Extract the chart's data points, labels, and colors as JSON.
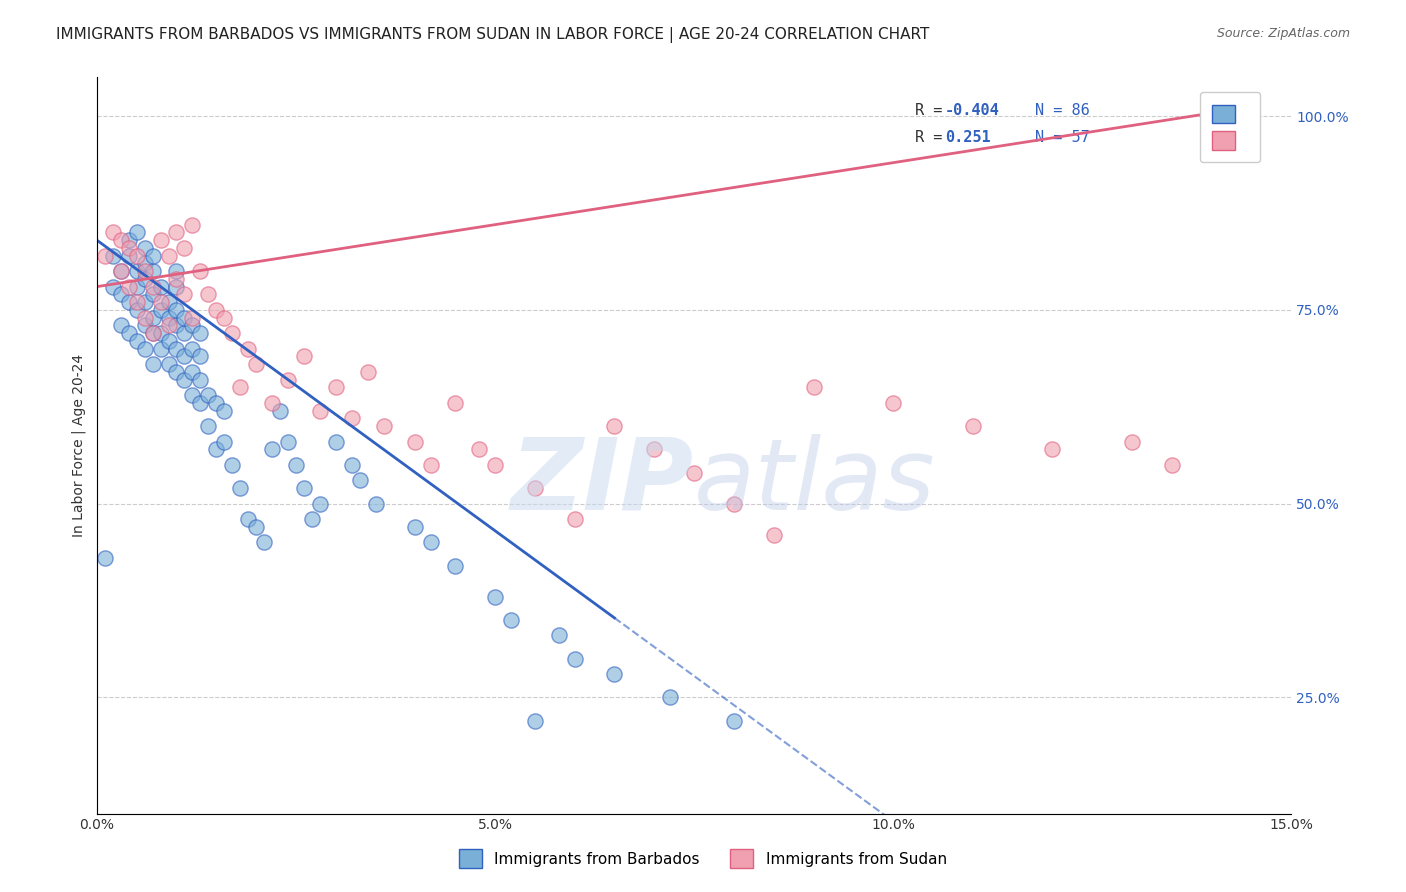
{
  "title": "IMMIGRANTS FROM BARBADOS VS IMMIGRANTS FROM SUDAN IN LABOR FORCE | AGE 20-24 CORRELATION CHART",
  "source": "Source: ZipAtlas.com",
  "xlabel": "",
  "ylabel": "In Labor Force | Age 20-24",
  "xlim": [
    0.0,
    0.15
  ],
  "ylim": [
    0.1,
    1.05
  ],
  "xticks": [
    0.0,
    0.05,
    0.1,
    0.15
  ],
  "xticklabels": [
    "0.0%",
    "5.0%",
    "10.0%",
    "15.0%"
  ],
  "yticks_right": [
    0.25,
    0.5,
    0.75,
    1.0
  ],
  "yticklabels_right": [
    "25.0%",
    "50.0%",
    "75.0%",
    "100.0%"
  ],
  "grid_color": "#cccccc",
  "watermark": "ZIPatlas",
  "watermark_color_zip": "#c8d8f0",
  "watermark_color_atlas": "#b8c8e8",
  "legend_r_blue": "-0.404",
  "legend_n_blue": "86",
  "legend_r_pink": "0.251",
  "legend_n_pink": "57",
  "blue_color": "#7ab0d8",
  "pink_color": "#f0a0b0",
  "blue_line_color": "#3060c0",
  "pink_line_color": "#e06080",
  "title_fontsize": 11,
  "axis_label_fontsize": 10,
  "tick_fontsize": 10,
  "blue_scatter_x": [
    0.001,
    0.002,
    0.002,
    0.003,
    0.003,
    0.003,
    0.004,
    0.004,
    0.004,
    0.004,
    0.005,
    0.005,
    0.005,
    0.005,
    0.005,
    0.006,
    0.006,
    0.006,
    0.006,
    0.006,
    0.006,
    0.007,
    0.007,
    0.007,
    0.007,
    0.007,
    0.007,
    0.008,
    0.008,
    0.008,
    0.008,
    0.009,
    0.009,
    0.009,
    0.009,
    0.01,
    0.01,
    0.01,
    0.01,
    0.01,
    0.01,
    0.011,
    0.011,
    0.011,
    0.011,
    0.012,
    0.012,
    0.012,
    0.012,
    0.013,
    0.013,
    0.013,
    0.013,
    0.014,
    0.014,
    0.015,
    0.015,
    0.016,
    0.016,
    0.017,
    0.018,
    0.019,
    0.02,
    0.021,
    0.022,
    0.023,
    0.024,
    0.025,
    0.026,
    0.027,
    0.028,
    0.03,
    0.032,
    0.033,
    0.035,
    0.04,
    0.042,
    0.045,
    0.05,
    0.052,
    0.055,
    0.058,
    0.06,
    0.065,
    0.072,
    0.08
  ],
  "blue_scatter_y": [
    0.43,
    0.78,
    0.82,
    0.73,
    0.77,
    0.8,
    0.72,
    0.76,
    0.82,
    0.84,
    0.71,
    0.75,
    0.78,
    0.8,
    0.85,
    0.7,
    0.73,
    0.76,
    0.79,
    0.81,
    0.83,
    0.68,
    0.72,
    0.74,
    0.77,
    0.8,
    0.82,
    0.7,
    0.72,
    0.75,
    0.78,
    0.68,
    0.71,
    0.74,
    0.76,
    0.67,
    0.7,
    0.73,
    0.75,
    0.78,
    0.8,
    0.66,
    0.69,
    0.72,
    0.74,
    0.64,
    0.67,
    0.7,
    0.73,
    0.63,
    0.66,
    0.69,
    0.72,
    0.6,
    0.64,
    0.57,
    0.63,
    0.58,
    0.62,
    0.55,
    0.52,
    0.48,
    0.47,
    0.45,
    0.57,
    0.62,
    0.58,
    0.55,
    0.52,
    0.48,
    0.5,
    0.58,
    0.55,
    0.53,
    0.5,
    0.47,
    0.45,
    0.42,
    0.38,
    0.35,
    0.22,
    0.33,
    0.3,
    0.28,
    0.25,
    0.22
  ],
  "pink_scatter_x": [
    0.001,
    0.002,
    0.003,
    0.003,
    0.004,
    0.004,
    0.005,
    0.005,
    0.006,
    0.006,
    0.007,
    0.007,
    0.008,
    0.008,
    0.009,
    0.009,
    0.01,
    0.01,
    0.011,
    0.011,
    0.012,
    0.012,
    0.013,
    0.014,
    0.015,
    0.016,
    0.017,
    0.018,
    0.019,
    0.02,
    0.022,
    0.024,
    0.026,
    0.028,
    0.03,
    0.032,
    0.034,
    0.036,
    0.04,
    0.042,
    0.045,
    0.048,
    0.05,
    0.055,
    0.06,
    0.065,
    0.07,
    0.075,
    0.08,
    0.085,
    0.09,
    0.1,
    0.11,
    0.12,
    0.13,
    0.135,
    0.14
  ],
  "pink_scatter_y": [
    0.82,
    0.85,
    0.8,
    0.84,
    0.78,
    0.83,
    0.76,
    0.82,
    0.74,
    0.8,
    0.72,
    0.78,
    0.84,
    0.76,
    0.82,
    0.73,
    0.79,
    0.85,
    0.77,
    0.83,
    0.86,
    0.74,
    0.8,
    0.77,
    0.75,
    0.74,
    0.72,
    0.65,
    0.7,
    0.68,
    0.63,
    0.66,
    0.69,
    0.62,
    0.65,
    0.61,
    0.67,
    0.6,
    0.58,
    0.55,
    0.63,
    0.57,
    0.55,
    0.52,
    0.48,
    0.6,
    0.57,
    0.54,
    0.5,
    0.46,
    0.65,
    0.63,
    0.6,
    0.57,
    0.58,
    0.55,
    0.98
  ],
  "blue_trend_x": [
    0.0,
    0.08
  ],
  "blue_trend_y_intercept": 0.84,
  "blue_trend_slope": -7.5,
  "pink_trend_x": [
    0.0,
    0.145
  ],
  "pink_trend_y_intercept": 0.78,
  "pink_trend_slope": 1.6
}
